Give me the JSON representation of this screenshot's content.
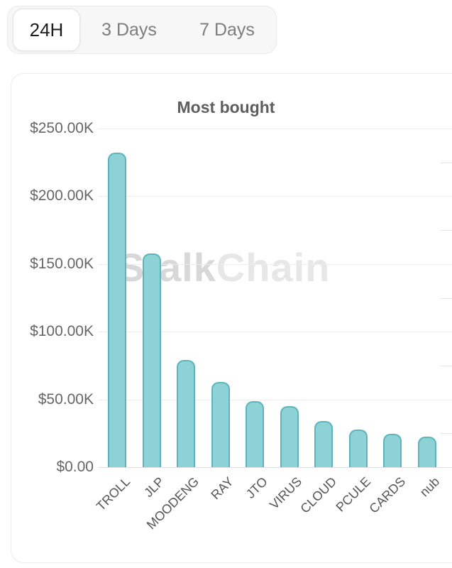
{
  "tabs": {
    "items": [
      {
        "label": "24H",
        "selected": true
      },
      {
        "label": "3 Days",
        "selected": false
      },
      {
        "label": "7 Days",
        "selected": false
      }
    ]
  },
  "card": {
    "title": "Most bought",
    "watermark_part1": "Stalk",
    "watermark_part2": "Chain"
  },
  "chart_data": {
    "type": "bar",
    "title": "Most bought",
    "categories": [
      "TROLL",
      "JLP",
      "MOODENG",
      "RAY",
      "JTO",
      "VIRUS",
      "CLOUD",
      "PCULE",
      "CARDS",
      "nub"
    ],
    "values": [
      232000,
      158000,
      79000,
      63000,
      48500,
      45000,
      34000,
      28000,
      24500,
      22500
    ],
    "y_ticks": [
      "$250.00K",
      "$200.00K",
      "$150.00K",
      "$100.00K",
      "$50.00K",
      "$0.00"
    ],
    "y_tick_values": [
      250000,
      200000,
      150000,
      100000,
      50000,
      0
    ],
    "ylim": [
      0,
      250000
    ],
    "xlabel": "",
    "ylabel": "",
    "grid": true,
    "legend": false,
    "bar_fill": "#8ed2d5",
    "bar_border": "#5cb5bd",
    "gridline_color": "#ececec",
    "label_color": "#666666"
  }
}
